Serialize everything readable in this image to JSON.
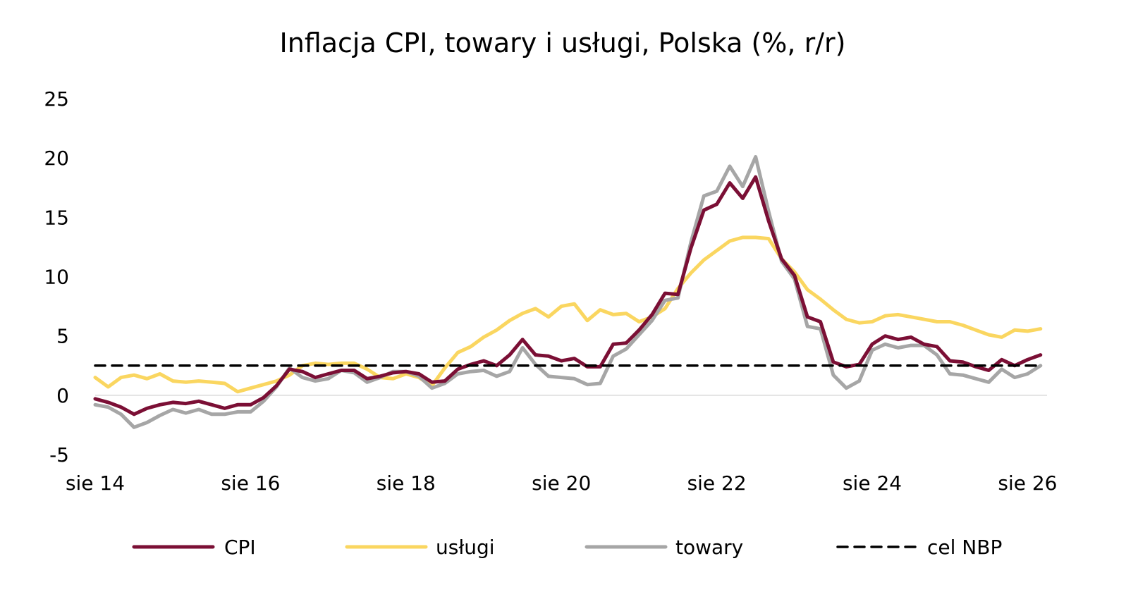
{
  "chart_data": {
    "type": "line",
    "title": "Inflacja CPI, towary i usługi, Polska (%, r/r)",
    "xlabel": "",
    "ylabel": "",
    "ylim": [
      -5,
      25
    ],
    "yticks": [
      "25",
      "20",
      "15",
      "10",
      "5",
      "0",
      "-5"
    ],
    "ytick_values": [
      25,
      20,
      15,
      10,
      5,
      0,
      -5
    ],
    "xlim": [
      "2014-08",
      "2026-11"
    ],
    "xticks": [
      "sie 14",
      "sie 16",
      "sie 18",
      "sie 20",
      "sie 22",
      "sie 24",
      "sie 26"
    ],
    "xtick_dates": [
      "2014-08",
      "2016-08",
      "2018-08",
      "2020-08",
      "2022-08",
      "2024-08",
      "2026-08"
    ],
    "grid": false,
    "legend_position": "bottom",
    "series": [
      {
        "name": "CPI",
        "color": "#7b0f35",
        "style": "solid",
        "points": [
          [
            "2014-08",
            -0.3
          ],
          [
            "2014-10",
            -0.6
          ],
          [
            "2014-12",
            -1.0
          ],
          [
            "2015-02",
            -1.6
          ],
          [
            "2015-04",
            -1.1
          ],
          [
            "2015-06",
            -0.8
          ],
          [
            "2015-08",
            -0.6
          ],
          [
            "2015-10",
            -0.7
          ],
          [
            "2015-12",
            -0.5
          ],
          [
            "2016-02",
            -0.8
          ],
          [
            "2016-04",
            -1.1
          ],
          [
            "2016-06",
            -0.8
          ],
          [
            "2016-08",
            -0.8
          ],
          [
            "2016-10",
            -0.2
          ],
          [
            "2016-12",
            0.8
          ],
          [
            "2017-02",
            2.2
          ],
          [
            "2017-04",
            2.0
          ],
          [
            "2017-06",
            1.5
          ],
          [
            "2017-08",
            1.8
          ],
          [
            "2017-10",
            2.1
          ],
          [
            "2017-12",
            2.1
          ],
          [
            "2018-02",
            1.4
          ],
          [
            "2018-04",
            1.6
          ],
          [
            "2018-06",
            1.9
          ],
          [
            "2018-08",
            2.0
          ],
          [
            "2018-10",
            1.8
          ],
          [
            "2018-12",
            1.1
          ],
          [
            "2019-02",
            1.2
          ],
          [
            "2019-04",
            2.2
          ],
          [
            "2019-06",
            2.6
          ],
          [
            "2019-08",
            2.9
          ],
          [
            "2019-10",
            2.5
          ],
          [
            "2019-12",
            3.4
          ],
          [
            "2020-02",
            4.7
          ],
          [
            "2020-04",
            3.4
          ],
          [
            "2020-06",
            3.3
          ],
          [
            "2020-08",
            2.9
          ],
          [
            "2020-10",
            3.1
          ],
          [
            "2020-12",
            2.4
          ],
          [
            "2021-02",
            2.4
          ],
          [
            "2021-04",
            4.3
          ],
          [
            "2021-06",
            4.4
          ],
          [
            "2021-08",
            5.5
          ],
          [
            "2021-10",
            6.8
          ],
          [
            "2021-12",
            8.6
          ],
          [
            "2022-02",
            8.5
          ],
          [
            "2022-04",
            12.4
          ],
          [
            "2022-06",
            15.6
          ],
          [
            "2022-08",
            16.1
          ],
          [
            "2022-10",
            17.9
          ],
          [
            "2022-12",
            16.6
          ],
          [
            "2023-02",
            18.4
          ],
          [
            "2023-04",
            14.7
          ],
          [
            "2023-06",
            11.5
          ],
          [
            "2023-08",
            10.1
          ],
          [
            "2023-10",
            6.6
          ],
          [
            "2023-12",
            6.2
          ],
          [
            "2024-02",
            2.8
          ],
          [
            "2024-04",
            2.4
          ],
          [
            "2024-06",
            2.6
          ],
          [
            "2024-08",
            4.3
          ],
          [
            "2024-10",
            5.0
          ],
          [
            "2024-12",
            4.7
          ],
          [
            "2025-02",
            4.9
          ],
          [
            "2025-04",
            4.3
          ],
          [
            "2025-06",
            4.1
          ],
          [
            "2025-08",
            2.9
          ],
          [
            "2025-10",
            2.8
          ],
          [
            "2025-12",
            2.4
          ],
          [
            "2026-02",
            2.1
          ],
          [
            "2026-04",
            3.0
          ],
          [
            "2026-06",
            2.5
          ],
          [
            "2026-08",
            3.0
          ],
          [
            "2026-10",
            3.4
          ]
        ]
      },
      {
        "name": "usługi",
        "color": "#fad660",
        "style": "solid",
        "points": [
          [
            "2014-08",
            1.5
          ],
          [
            "2014-10",
            0.7
          ],
          [
            "2014-12",
            1.5
          ],
          [
            "2015-02",
            1.7
          ],
          [
            "2015-04",
            1.4
          ],
          [
            "2015-06",
            1.8
          ],
          [
            "2015-08",
            1.2
          ],
          [
            "2015-10",
            1.1
          ],
          [
            "2015-12",
            1.2
          ],
          [
            "2016-02",
            1.1
          ],
          [
            "2016-04",
            1.0
          ],
          [
            "2016-06",
            0.3
          ],
          [
            "2016-08",
            0.6
          ],
          [
            "2016-10",
            0.9
          ],
          [
            "2016-12",
            1.2
          ],
          [
            "2017-02",
            1.7
          ],
          [
            "2017-04",
            2.5
          ],
          [
            "2017-06",
            2.7
          ],
          [
            "2017-08",
            2.6
          ],
          [
            "2017-10",
            2.7
          ],
          [
            "2017-12",
            2.7
          ],
          [
            "2018-02",
            2.2
          ],
          [
            "2018-04",
            1.5
          ],
          [
            "2018-06",
            1.4
          ],
          [
            "2018-08",
            1.8
          ],
          [
            "2018-10",
            1.5
          ],
          [
            "2018-12",
            0.8
          ],
          [
            "2019-02",
            2.3
          ],
          [
            "2019-04",
            3.6
          ],
          [
            "2019-06",
            4.1
          ],
          [
            "2019-08",
            4.9
          ],
          [
            "2019-10",
            5.5
          ],
          [
            "2019-12",
            6.3
          ],
          [
            "2020-02",
            6.9
          ],
          [
            "2020-04",
            7.3
          ],
          [
            "2020-06",
            6.6
          ],
          [
            "2020-08",
            7.5
          ],
          [
            "2020-10",
            7.7
          ],
          [
            "2020-12",
            6.3
          ],
          [
            "2021-02",
            7.2
          ],
          [
            "2021-04",
            6.8
          ],
          [
            "2021-06",
            6.9
          ],
          [
            "2021-08",
            6.2
          ],
          [
            "2021-10",
            6.6
          ],
          [
            "2021-12",
            7.3
          ],
          [
            "2022-02",
            9.0
          ],
          [
            "2022-04",
            10.3
          ],
          [
            "2022-06",
            11.4
          ],
          [
            "2022-08",
            12.2
          ],
          [
            "2022-10",
            13.0
          ],
          [
            "2022-12",
            13.3
          ],
          [
            "2023-02",
            13.3
          ],
          [
            "2023-04",
            13.2
          ],
          [
            "2023-06",
            11.5
          ],
          [
            "2023-08",
            10.4
          ],
          [
            "2023-10",
            8.9
          ],
          [
            "2023-12",
            8.1
          ],
          [
            "2024-02",
            7.2
          ],
          [
            "2024-04",
            6.4
          ],
          [
            "2024-06",
            6.1
          ],
          [
            "2024-08",
            6.2
          ],
          [
            "2024-10",
            6.7
          ],
          [
            "2024-12",
            6.8
          ],
          [
            "2025-02",
            6.6
          ],
          [
            "2025-04",
            6.4
          ],
          [
            "2025-06",
            6.2
          ],
          [
            "2025-08",
            6.2
          ],
          [
            "2025-10",
            5.9
          ],
          [
            "2025-12",
            5.5
          ],
          [
            "2026-02",
            5.1
          ],
          [
            "2026-04",
            4.9
          ],
          [
            "2026-06",
            5.5
          ],
          [
            "2026-08",
            5.4
          ],
          [
            "2026-10",
            5.6
          ]
        ]
      },
      {
        "name": "towary",
        "color": "#a6a6a6",
        "style": "solid",
        "points": [
          [
            "2014-08",
            -0.8
          ],
          [
            "2014-10",
            -1.0
          ],
          [
            "2014-12",
            -1.6
          ],
          [
            "2015-02",
            -2.7
          ],
          [
            "2015-04",
            -2.3
          ],
          [
            "2015-06",
            -1.7
          ],
          [
            "2015-08",
            -1.2
          ],
          [
            "2015-10",
            -1.5
          ],
          [
            "2015-12",
            -1.2
          ],
          [
            "2016-02",
            -1.6
          ],
          [
            "2016-04",
            -1.6
          ],
          [
            "2016-06",
            -1.4
          ],
          [
            "2016-08",
            -1.4
          ],
          [
            "2016-10",
            -0.5
          ],
          [
            "2016-12",
            0.7
          ],
          [
            "2017-02",
            2.3
          ],
          [
            "2017-04",
            1.5
          ],
          [
            "2017-06",
            1.2
          ],
          [
            "2017-08",
            1.4
          ],
          [
            "2017-10",
            2.1
          ],
          [
            "2017-12",
            1.9
          ],
          [
            "2018-02",
            1.1
          ],
          [
            "2018-04",
            1.5
          ],
          [
            "2018-06",
            2.0
          ],
          [
            "2018-08",
            2.0
          ],
          [
            "2018-10",
            1.6
          ],
          [
            "2018-12",
            0.6
          ],
          [
            "2019-02",
            1.0
          ],
          [
            "2019-04",
            1.8
          ],
          [
            "2019-06",
            2.0
          ],
          [
            "2019-08",
            2.1
          ],
          [
            "2019-10",
            1.6
          ],
          [
            "2019-12",
            2.0
          ],
          [
            "2020-02",
            4.0
          ],
          [
            "2020-04",
            2.6
          ],
          [
            "2020-06",
            1.6
          ],
          [
            "2020-08",
            1.5
          ],
          [
            "2020-10",
            1.4
          ],
          [
            "2020-12",
            0.9
          ],
          [
            "2021-02",
            1.0
          ],
          [
            "2021-04",
            3.3
          ],
          [
            "2021-06",
            3.9
          ],
          [
            "2021-08",
            5.1
          ],
          [
            "2021-10",
            6.3
          ],
          [
            "2021-12",
            8.0
          ],
          [
            "2022-02",
            8.2
          ],
          [
            "2022-04",
            12.9
          ],
          [
            "2022-06",
            16.8
          ],
          [
            "2022-08",
            17.2
          ],
          [
            "2022-10",
            19.3
          ],
          [
            "2022-12",
            17.6
          ],
          [
            "2023-02",
            20.1
          ],
          [
            "2023-04",
            15.5
          ],
          [
            "2023-06",
            11.3
          ],
          [
            "2023-08",
            9.8
          ],
          [
            "2023-10",
            5.8
          ],
          [
            "2023-12",
            5.6
          ],
          [
            "2024-02",
            1.7
          ],
          [
            "2024-04",
            0.6
          ],
          [
            "2024-06",
            1.2
          ],
          [
            "2024-08",
            3.8
          ],
          [
            "2024-10",
            4.3
          ],
          [
            "2024-12",
            4.0
          ],
          [
            "2025-02",
            4.2
          ],
          [
            "2025-04",
            4.2
          ],
          [
            "2025-06",
            3.4
          ],
          [
            "2025-08",
            1.8
          ],
          [
            "2025-10",
            1.7
          ],
          [
            "2025-12",
            1.4
          ],
          [
            "2026-02",
            1.1
          ],
          [
            "2026-04",
            2.2
          ],
          [
            "2026-06",
            1.5
          ],
          [
            "2026-08",
            1.8
          ],
          [
            "2026-10",
            2.5
          ]
        ]
      },
      {
        "name": "cel NBP",
        "color": "#000000",
        "style": "dashed",
        "points": [
          [
            "2014-08",
            2.5
          ],
          [
            "2026-10",
            2.5
          ]
        ]
      }
    ]
  }
}
